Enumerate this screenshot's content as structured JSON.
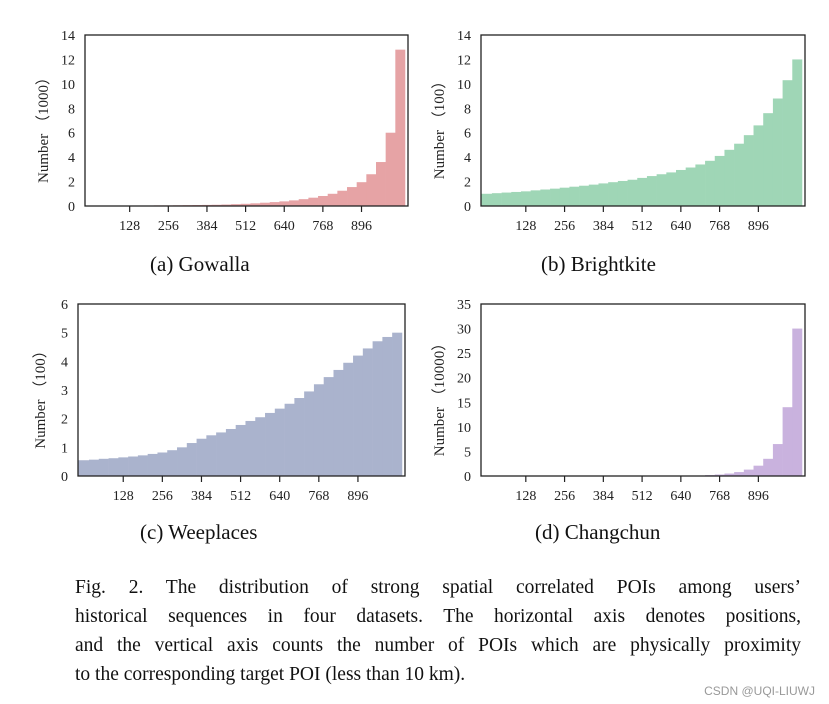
{
  "chart_data": [
    {
      "type": "bar",
      "subcaption": "(a)  Gowalla",
      "ylabel": "Number （1000）",
      "xlim": [
        -20,
        1050
      ],
      "ylim": [
        0,
        14
      ],
      "yticks": [
        0,
        2,
        4,
        6,
        8,
        10,
        12,
        14
      ],
      "xticks": [
        128,
        256,
        384,
        512,
        640,
        768,
        896
      ],
      "color": "#e6a3a5",
      "x": [
        0,
        32,
        64,
        96,
        128,
        160,
        192,
        224,
        256,
        288,
        320,
        352,
        384,
        416,
        448,
        480,
        512,
        544,
        576,
        608,
        640,
        672,
        704,
        736,
        768,
        800,
        832,
        864,
        896,
        928,
        960,
        992,
        1024
      ],
      "values": [
        0.02,
        0.02,
        0.03,
        0.03,
        0.03,
        0.04,
        0.04,
        0.05,
        0.05,
        0.06,
        0.07,
        0.08,
        0.09,
        0.1,
        0.12,
        0.15,
        0.18,
        0.22,
        0.27,
        0.32,
        0.38,
        0.46,
        0.56,
        0.68,
        0.82,
        1.0,
        1.25,
        1.55,
        1.95,
        2.6,
        3.6,
        6.0,
        12.8
      ]
    },
    {
      "type": "bar",
      "subcaption": "(b)  Brightkite",
      "ylabel": "Number （100）",
      "xlim": [
        -20,
        1050
      ],
      "ylim": [
        0,
        14
      ],
      "yticks": [
        0,
        2,
        4,
        6,
        8,
        10,
        12,
        14
      ],
      "xticks": [
        128,
        256,
        384,
        512,
        640,
        768,
        896
      ],
      "color": "#9fd6b6",
      "x": [
        0,
        32,
        64,
        96,
        128,
        160,
        192,
        224,
        256,
        288,
        320,
        352,
        384,
        416,
        448,
        480,
        512,
        544,
        576,
        608,
        640,
        672,
        704,
        736,
        768,
        800,
        832,
        864,
        896,
        928,
        960,
        992,
        1024
      ],
      "values": [
        1.0,
        1.05,
        1.1,
        1.15,
        1.2,
        1.28,
        1.35,
        1.42,
        1.5,
        1.58,
        1.66,
        1.75,
        1.85,
        1.95,
        2.05,
        2.15,
        2.3,
        2.45,
        2.6,
        2.75,
        2.95,
        3.15,
        3.4,
        3.7,
        4.1,
        4.6,
        5.1,
        5.8,
        6.6,
        7.6,
        8.8,
        10.3,
        12.0
      ]
    },
    {
      "type": "bar",
      "subcaption": "(c)  Weeplaces",
      "ylabel": "Number （100）",
      "xlim": [
        -20,
        1050
      ],
      "ylim": [
        0,
        6
      ],
      "yticks": [
        0,
        1,
        2,
        3,
        4,
        5,
        6
      ],
      "xticks": [
        128,
        256,
        384,
        512,
        640,
        768,
        896
      ],
      "color": "#aab3cd",
      "x": [
        0,
        32,
        64,
        96,
        128,
        160,
        192,
        224,
        256,
        288,
        320,
        352,
        384,
        416,
        448,
        480,
        512,
        544,
        576,
        608,
        640,
        672,
        704,
        736,
        768,
        800,
        832,
        864,
        896,
        928,
        960,
        992,
        1024
      ],
      "values": [
        0.55,
        0.57,
        0.6,
        0.62,
        0.65,
        0.68,
        0.72,
        0.77,
        0.82,
        0.9,
        1.0,
        1.15,
        1.3,
        1.42,
        1.52,
        1.64,
        1.78,
        1.92,
        2.05,
        2.2,
        2.35,
        2.52,
        2.72,
        2.95,
        3.2,
        3.45,
        3.7,
        3.95,
        4.2,
        4.45,
        4.7,
        4.85,
        5.0
      ]
    },
    {
      "type": "bar",
      "subcaption": "(d)  Changchun",
      "ylabel": "Number （10000）",
      "xlim": [
        -20,
        1050
      ],
      "ylim": [
        0,
        35
      ],
      "yticks": [
        0,
        5,
        10,
        15,
        20,
        25,
        30,
        35
      ],
      "xticks": [
        128,
        256,
        384,
        512,
        640,
        768,
        896
      ],
      "color": "#c9b2de",
      "x": [
        0,
        32,
        64,
        96,
        128,
        160,
        192,
        224,
        256,
        288,
        320,
        352,
        384,
        416,
        448,
        480,
        512,
        544,
        576,
        608,
        640,
        672,
        704,
        736,
        768,
        800,
        832,
        864,
        896,
        928,
        960,
        992,
        1024
      ],
      "values": [
        0,
        0,
        0,
        0,
        0,
        0,
        0,
        0,
        0,
        0,
        0,
        0,
        0,
        0,
        0,
        0,
        0,
        0,
        0,
        0,
        0,
        0.05,
        0.1,
        0.18,
        0.3,
        0.5,
        0.8,
        1.3,
        2.1,
        3.5,
        6.5,
        14,
        30
      ]
    }
  ],
  "caption": {
    "lines": [
      "Fig. 2.   The distribution of strong spatial correlated POIs among users’",
      "historical sequences in four datasets. The horizontal axis denotes positions,",
      "and the vertical axis counts the number of POIs which are physically proximity",
      "to the corresponding target POI (less than 10 km)."
    ]
  },
  "watermark": "CSDN @UQI-LIUWJ"
}
